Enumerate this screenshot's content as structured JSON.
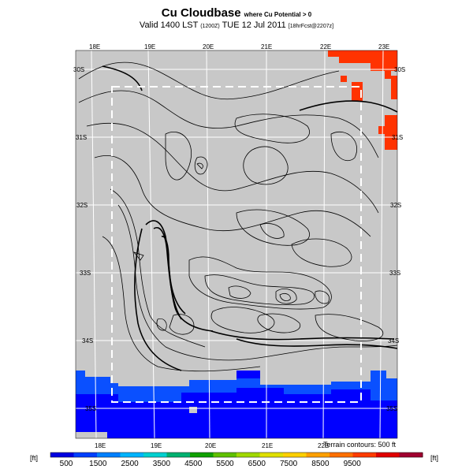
{
  "header": {
    "title": "Cu Cloudbase",
    "title_note": "where Cu Potential > 0",
    "subtitle": "Valid 1400 LST",
    "subtitle_run": "(1200Z)",
    "subtitle_date": "TUE 12 Jul 2011",
    "subtitle_fcst": "[18hrFcst@2207z]"
  },
  "map": {
    "lon_labels_top": [
      "18E",
      "19E",
      "20E",
      "21E",
      "22E",
      "23E"
    ],
    "lon_labels_bottom": [
      "18E",
      "19E",
      "20E",
      "21E",
      "22E"
    ],
    "lat_labels_left": [
      "30S",
      "31S",
      "32S",
      "33S",
      "34S",
      "35S"
    ],
    "lat_labels_right": [
      "30S",
      "31S",
      "32S",
      "33S",
      "34S",
      "35S"
    ],
    "terrain_note": "Terrain contours: 500 ft",
    "colors": {
      "no_data": "#c8c8c8",
      "ocean_deep": "#0000ff",
      "ocean_mid": "#0a50ff",
      "high": "#ff3300",
      "contour": "#000000",
      "grid": "#ffffff"
    }
  },
  "colorbar": {
    "unit_left": "[ft]",
    "unit_right": "[ft]",
    "tick_labels": [
      "500",
      "1500",
      "2500",
      "3500",
      "4500",
      "5500",
      "6500",
      "7500",
      "8500",
      "9500"
    ],
    "colors": [
      "#0000e0",
      "#0040ff",
      "#0080ff",
      "#00b4ff",
      "#00d0d0",
      "#00b070",
      "#10a000",
      "#60c000",
      "#a0d800",
      "#e0e000",
      "#ffd000",
      "#ffa000",
      "#ff7000",
      "#ff3c00",
      "#e00000",
      "#a00030"
    ]
  }
}
